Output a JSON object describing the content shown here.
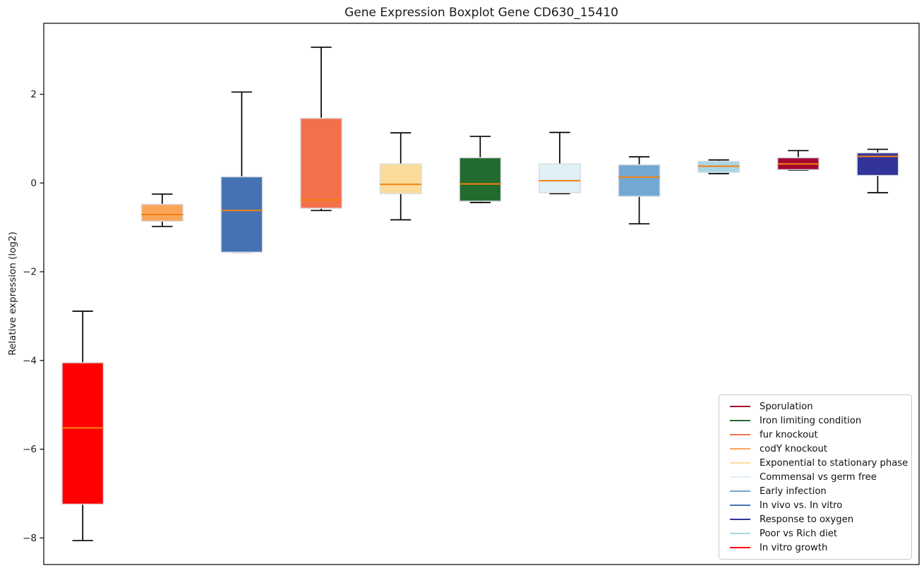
{
  "chart_data": {
    "type": "boxplot",
    "title": "Gene Expression Boxplot Gene CD630_15410",
    "xlabel": "",
    "ylabel": "Relative expression (log2)",
    "ylim": [
      -8.6,
      3.6
    ],
    "xlim": [
      0.51,
      11.52
    ],
    "yticks": [
      2,
      0,
      -2,
      -4,
      -6,
      -8
    ],
    "grid": false,
    "median_color": "#f5810e",
    "whisker_color": "#000000",
    "box_edge_color": "#d9dde4",
    "box_width": 0.52,
    "cap_width": 0.26,
    "boxes": [
      {
        "label": "In vitro growth",
        "color": "#ff0000",
        "position": 1,
        "whisker_low": -8.06,
        "q1": -7.24,
        "median": -5.52,
        "q3": -4.05,
        "whisker_high": -2.89
      },
      {
        "label": "codY knockout",
        "color": "#fba55b",
        "position": 2,
        "whisker_low": -0.98,
        "q1": -0.86,
        "median": -0.71,
        "q3": -0.48,
        "whisker_high": -0.25
      },
      {
        "label": "In vivo vs. In vitro",
        "color": "#4472b3",
        "position": 3,
        "whisker_low": -1.56,
        "q1": -1.56,
        "median": -0.62,
        "q3": 0.14,
        "whisker_high": 2.05
      },
      {
        "label": "fur knockout",
        "color": "#f3704b",
        "position": 4,
        "whisker_low": -0.62,
        "q1": -0.57,
        "median": -0.38,
        "q3": 1.46,
        "whisker_high": 3.06
      },
      {
        "label": "Exponential to stationary phase",
        "color": "#fbdc9b",
        "position": 5,
        "whisker_low": -0.83,
        "q1": -0.24,
        "median": -0.03,
        "q3": 0.43,
        "whisker_high": 1.13
      },
      {
        "label": "Iron limiting condition",
        "color": "#226b2e",
        "position": 6,
        "whisker_low": -0.44,
        "q1": -0.41,
        "median": -0.02,
        "q3": 0.57,
        "whisker_high": 1.05
      },
      {
        "label": "Commensal vs germ free",
        "color": "#dff0f6",
        "position": 7,
        "whisker_low": -0.24,
        "q1": -0.22,
        "median": 0.05,
        "q3": 0.43,
        "whisker_high": 1.14
      },
      {
        "label": "Early infection",
        "color": "#72a8d2",
        "position": 8,
        "whisker_low": -0.92,
        "q1": -0.3,
        "median": 0.13,
        "q3": 0.41,
        "whisker_high": 0.59
      },
      {
        "label": "Poor vs Rich diet",
        "color": "#a9d6e5",
        "position": 9,
        "whisker_low": 0.21,
        "q1": 0.24,
        "median": 0.38,
        "q3": 0.49,
        "whisker_high": 0.52
      },
      {
        "label": "Sporulation",
        "color": "#a40730",
        "position": 10,
        "whisker_low": 0.29,
        "q1": 0.3,
        "median": 0.43,
        "q3": 0.57,
        "whisker_high": 0.73
      },
      {
        "label": "Response to oxygen",
        "color": "#33339c",
        "position": 11,
        "whisker_low": -0.22,
        "q1": 0.17,
        "median": 0.6,
        "q3": 0.68,
        "whisker_high": 0.76
      }
    ],
    "legend": {
      "position": "lower right",
      "labels": [
        "Sporulation",
        "Iron limiting condition",
        "fur knockout",
        "codY knockout",
        "Exponential to stationary phase",
        "Commensal vs germ free",
        "Early infection",
        "In vivo vs. In vitro",
        "Response to oxygen",
        "Poor vs Rich diet",
        "In vitro growth"
      ]
    }
  }
}
